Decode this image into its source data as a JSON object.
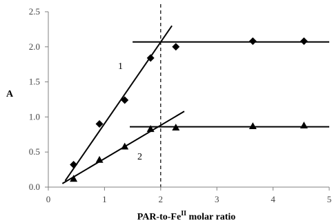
{
  "chart_data": {
    "type": "scatter",
    "xlabel": {
      "main": "PAR-to-Fe",
      "sup": "II",
      "rest": " molar ratio"
    },
    "ylabel": "A",
    "xlim": [
      0,
      5
    ],
    "ylim": [
      0,
      2.5
    ],
    "x_ticks": [
      "0",
      "1",
      "2",
      "3",
      "4",
      "5"
    ],
    "y_ticks": [
      "0.0",
      "0.5",
      "1.0",
      "1.5",
      "2.0",
      "2.5"
    ],
    "grid": false,
    "series": [
      {
        "name": "1",
        "marker": "diamond",
        "points": [
          {
            "x": 0.45,
            "y": 0.32
          },
          {
            "x": 0.91,
            "y": 0.9
          },
          {
            "x": 1.36,
            "y": 1.24
          },
          {
            "x": 1.82,
            "y": 1.84
          },
          {
            "x": 2.27,
            "y": 2.0
          },
          {
            "x": 3.64,
            "y": 2.08
          },
          {
            "x": 4.55,
            "y": 2.08
          }
        ],
        "fit_lines": [
          {
            "x1": 0.3,
            "y1": 0.09,
            "x2": 2.2,
            "y2": 2.3
          },
          {
            "x1": 1.5,
            "y1": 2.07,
            "x2": 5.0,
            "y2": 2.07
          }
        ]
      },
      {
        "name": "2",
        "marker": "triangle",
        "points": [
          {
            "x": 0.45,
            "y": 0.12
          },
          {
            "x": 0.91,
            "y": 0.39
          },
          {
            "x": 1.36,
            "y": 0.58
          },
          {
            "x": 1.82,
            "y": 0.83
          },
          {
            "x": 2.27,
            "y": 0.85
          },
          {
            "x": 3.64,
            "y": 0.87
          },
          {
            "x": 4.55,
            "y": 0.88
          }
        ],
        "fit_lines": [
          {
            "x1": 0.25,
            "y1": 0.05,
            "x2": 2.42,
            "y2": 1.08
          },
          {
            "x1": 1.45,
            "y1": 0.86,
            "x2": 5.0,
            "y2": 0.86
          }
        ]
      }
    ],
    "vertical_reference": {
      "x": 2.0,
      "style": "dashed"
    }
  }
}
